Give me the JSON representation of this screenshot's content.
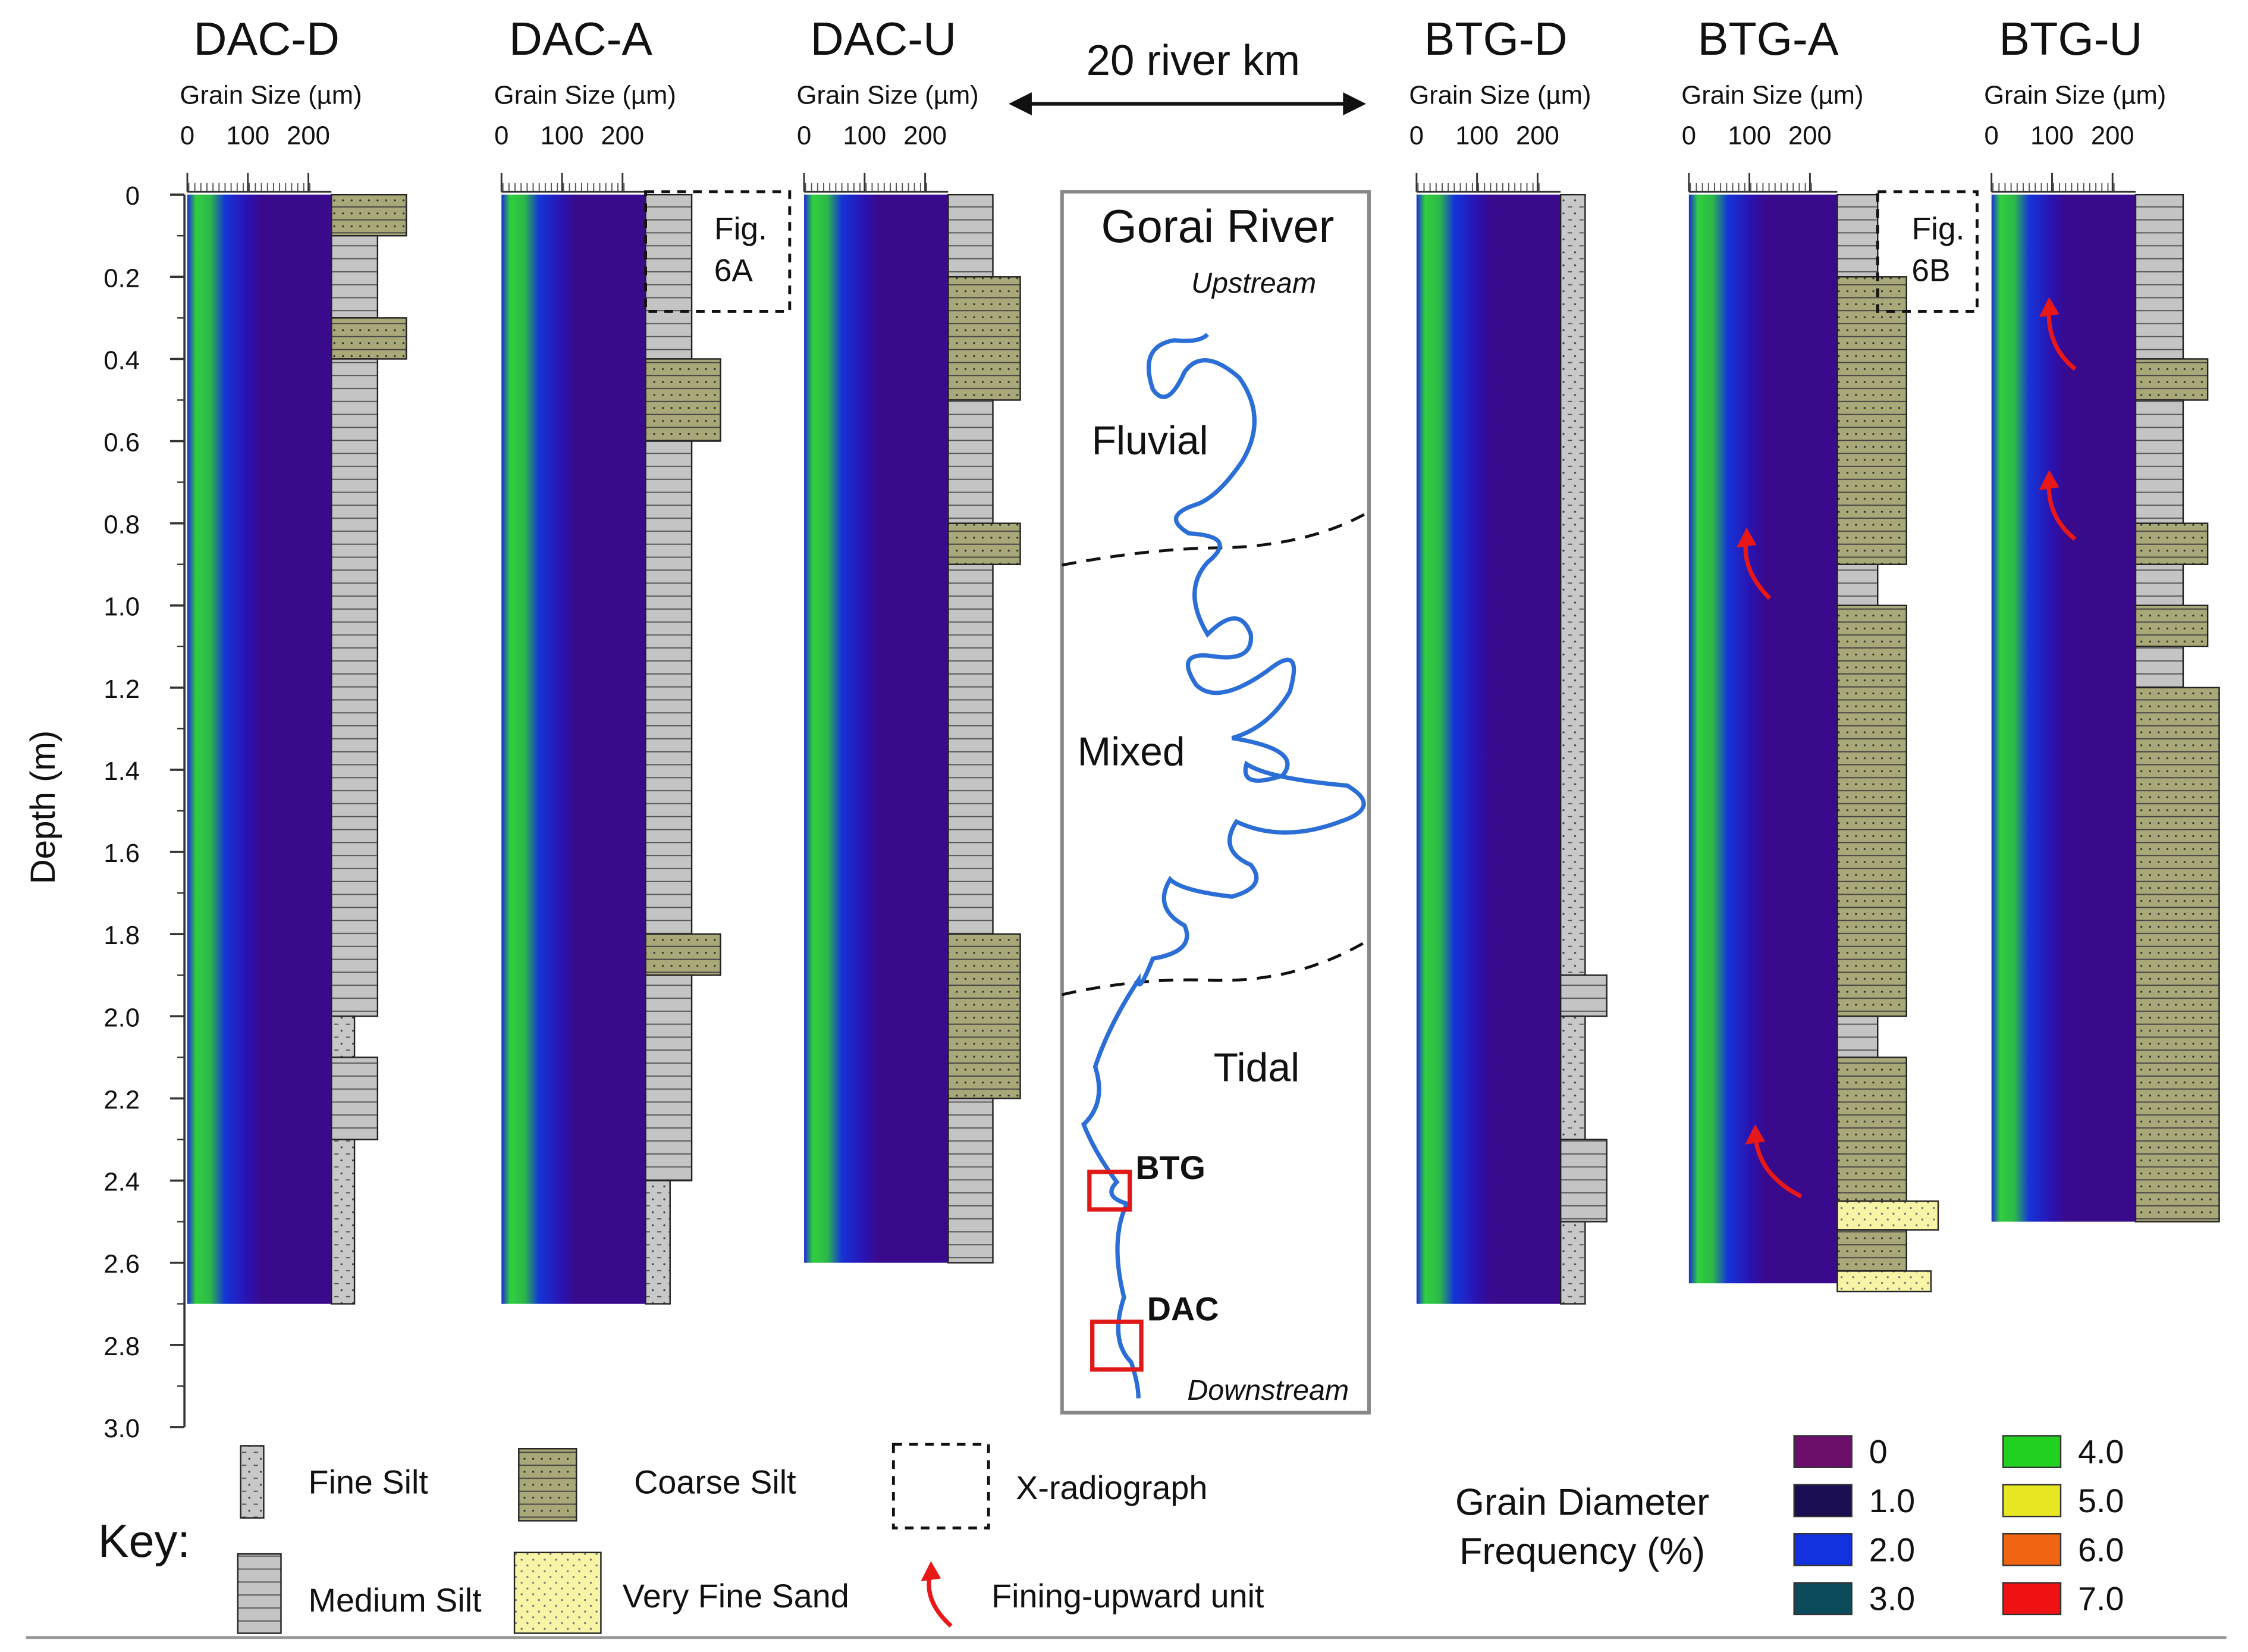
{
  "cores": [
    {
      "name": "DAC-D",
      "axis_label": "Grain Size (µm)",
      "ticks": [
        "0",
        "100",
        "200"
      ]
    },
    {
      "name": "DAC-A",
      "axis_label": "Grain Size (µm)",
      "ticks": [
        "0",
        "100",
        "200"
      ]
    },
    {
      "name": "DAC-U",
      "axis_label": "Grain Size (µm)",
      "ticks": [
        "0",
        "100",
        "200"
      ]
    },
    {
      "name": "BTG-D",
      "axis_label": "Grain Size (µm)",
      "ticks": [
        "0",
        "100",
        "200"
      ]
    },
    {
      "name": "BTG-A",
      "axis_label": "Grain Size (µm)",
      "ticks": [
        "0",
        "100",
        "200"
      ]
    },
    {
      "name": "BTG-U",
      "axis_label": "Grain Size (µm)",
      "ticks": [
        "0",
        "100",
        "200"
      ]
    }
  ],
  "depth_axis": {
    "label": "Depth (m)",
    "ticks": [
      "0",
      "0.2",
      "0.4",
      "0.6",
      "0.8",
      "1.0",
      "1.2",
      "1.4",
      "1.6",
      "1.8",
      "2.0",
      "2.2",
      "2.4",
      "2.6",
      "2.8",
      "3.0"
    ]
  },
  "scale_label": "20 river km",
  "map": {
    "title": "Gorai River",
    "upstream": "Upstream",
    "downstream": "Downstream",
    "zones": [
      "Fluvial",
      "Mixed",
      "Tidal"
    ],
    "sites": [
      "BTG",
      "DAC"
    ]
  },
  "figure_refs": [
    {
      "line1": "Fig.",
      "line2": "6A"
    },
    {
      "line1": "Fig.",
      "line2": "6B"
    }
  ],
  "key": {
    "title": "Key:",
    "items": [
      "Fine Silt",
      "Coarse Silt",
      "X-radiograph",
      "Medium Silt",
      "Very Fine Sand",
      "Fining-upward unit"
    ]
  },
  "legend": {
    "title_line1": "Grain Diameter",
    "title_line2": "Frequency (%)",
    "entries": [
      {
        "label": "0",
        "color": "#6b0f6b"
      },
      {
        "label": "1.0",
        "color": "#1c0c52"
      },
      {
        "label": "2.0",
        "color": "#1232e0"
      },
      {
        "label": "3.0",
        "color": "#0b4b5b"
      },
      {
        "label": "4.0",
        "color": "#22d022"
      },
      {
        "label": "5.0",
        "color": "#e6e622"
      },
      {
        "label": "6.0",
        "color": "#f06412"
      },
      {
        "label": "7.0",
        "color": "#f01212"
      }
    ]
  }
}
